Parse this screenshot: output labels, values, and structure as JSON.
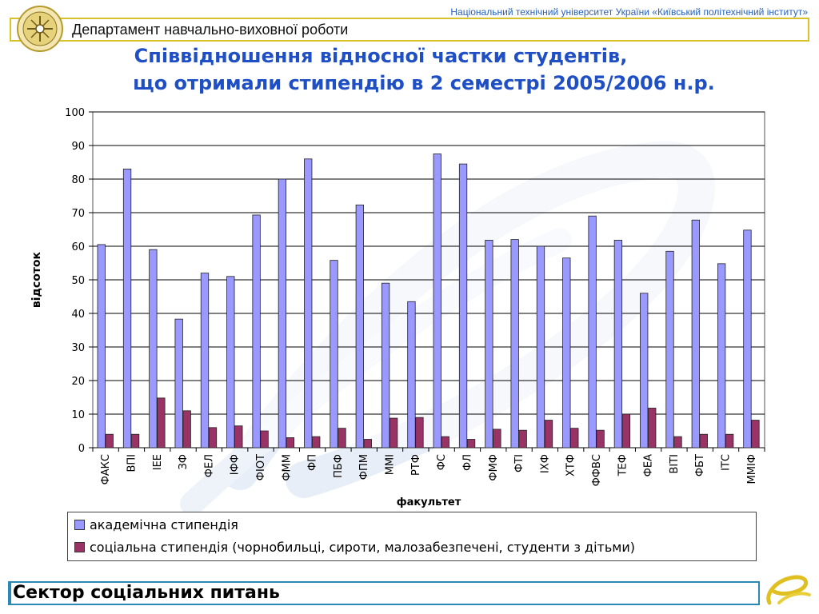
{
  "header": {
    "university": "Національний технічний університет України «Київський політехнічний інститут»",
    "department": "Департамент навчально-виховної роботи"
  },
  "footer": {
    "section": "Сектор соціальних питань"
  },
  "colors": {
    "academic": "#9999ff",
    "social": "#993366",
    "title": "#1f4fc4",
    "frame": "#d8c22a",
    "footer_border": "#2b89b5"
  },
  "chart_data": {
    "type": "bar",
    "title_lines": [
      "Співвідношення відносної частки студентів,",
      "що отримали стипендію в 2 семестрі 2005/2006 н.р."
    ],
    "xlabel": "факультет",
    "ylabel": "відсоток",
    "ylim": [
      0,
      100
    ],
    "yticks": [
      0,
      10,
      20,
      30,
      40,
      50,
      60,
      70,
      80,
      90,
      100
    ],
    "grid": true,
    "legend_position": "bottom",
    "categories": [
      "ФАКС",
      "ВПІ",
      "ІЕЕ",
      "ЗФ",
      "ФЕЛ",
      "ІФФ",
      "ФІОТ",
      "ФММ",
      "ФП",
      "ПБФ",
      "ФПМ",
      "ММІ",
      "РТФ",
      "ФС",
      "ФЛ",
      "ФМФ",
      "ФТІ",
      "ІХФ",
      "ХТФ",
      "ФФВС",
      "ТЕФ",
      "ФЕА",
      "ВІТІ",
      "ФБТ",
      "ІТС",
      "ММІФ"
    ],
    "series": [
      {
        "name": "академічна стипендія",
        "values": [
          60.5,
          83,
          59,
          38.3,
          52,
          51,
          69.3,
          80,
          86,
          55.8,
          72.3,
          49,
          43.5,
          87.5,
          84.5,
          61.8,
          62,
          60,
          56.5,
          69,
          61.8,
          46,
          58.5,
          67.8,
          54.8,
          64.8
        ]
      },
      {
        "name": "соціальна стипендія (чорнобильці, сироти, малозабезпечені, студенти з дітьми)",
        "values": [
          4,
          4,
          14.8,
          11,
          6,
          6.5,
          5,
          3,
          3.3,
          5.8,
          2.5,
          8.8,
          9,
          3.3,
          2.5,
          5.5,
          5.2,
          8.2,
          5.8,
          5.2,
          10,
          11.8,
          3.3,
          4,
          4,
          8.2
        ]
      }
    ]
  }
}
